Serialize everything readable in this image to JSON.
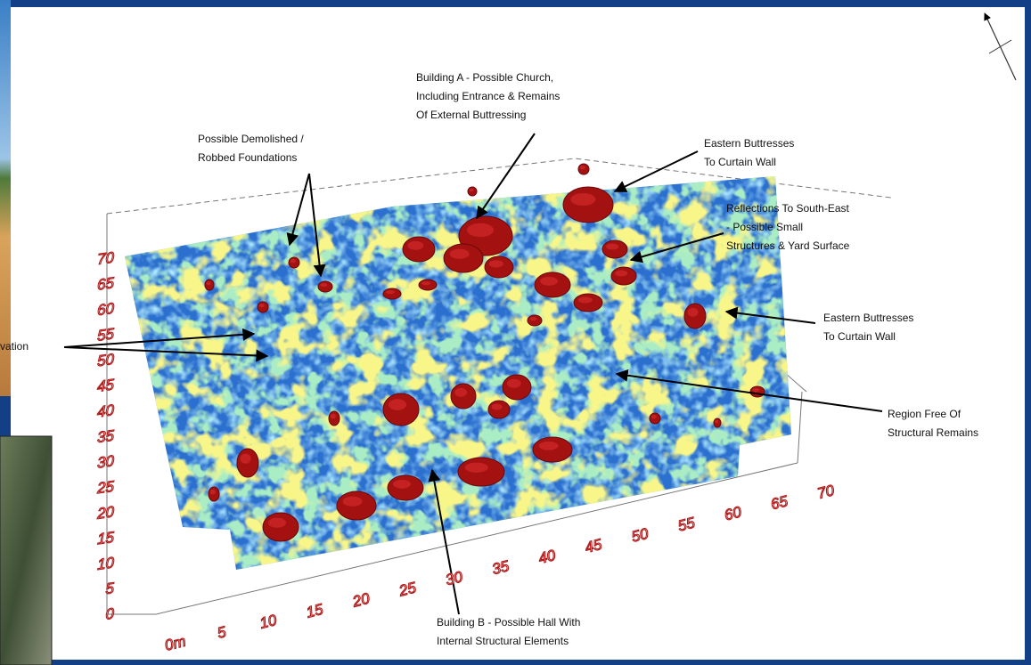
{
  "annotations": [
    {
      "lines": [
        "Building A - Possible Church,",
        "Including Entrance & Remains",
        "Of External Buttressing"
      ]
    },
    {
      "lines": [
        "Possible Demolished /",
        "Robbed Foundations"
      ]
    },
    {
      "lines": [
        "Eastern Buttresses",
        "To Curtain Wall"
      ]
    },
    {
      "lines": [
        "Reflections To South-East",
        "- Possible Small",
        "Structures & Yard Surface"
      ]
    },
    {
      "lines": [
        "Eastern Buttresses",
        "To Curtain Wall"
      ]
    },
    {
      "lines": [
        "Region Free Of",
        "Structural Remains"
      ]
    },
    {
      "lines": [
        "Building B - Possible Hall With",
        "Internal Structural Elements"
      ]
    },
    {
      "lines": [
        "vation"
      ]
    }
  ],
  "axis_labels": {
    "y": [
      "0",
      "5",
      "10",
      "15",
      "20",
      "25",
      "30",
      "35",
      "40",
      "45",
      "50",
      "55",
      "60",
      "65",
      "70"
    ],
    "x": [
      "0m",
      "5",
      "10",
      "15",
      "20",
      "25",
      "30",
      "35",
      "40",
      "45",
      "50",
      "55",
      "60",
      "65",
      "70"
    ]
  }
}
